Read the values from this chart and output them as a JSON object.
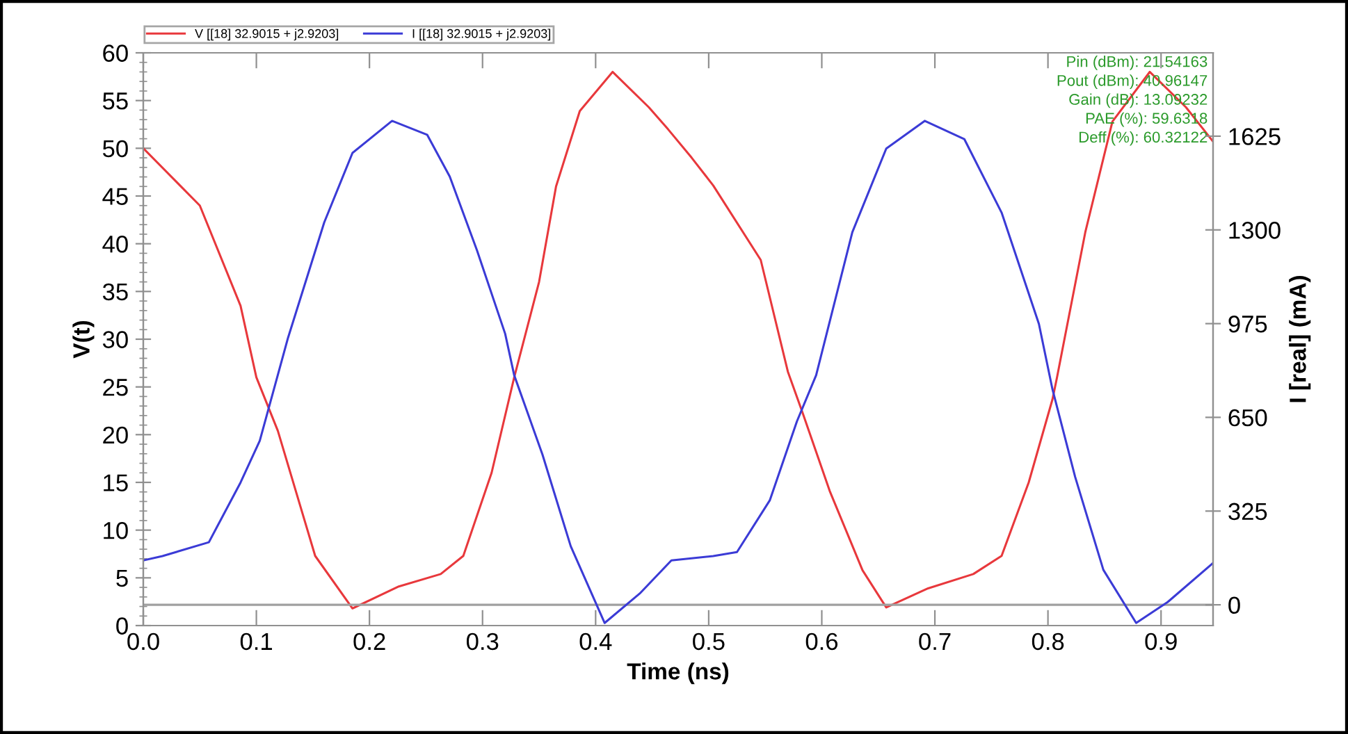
{
  "chart_data": {
    "type": "line",
    "xlabel": "Time (ns)",
    "ylabel": "V(t)",
    "y2label": "I [real] (mA)",
    "xlim": [
      0,
      0.946
    ],
    "xticks": [
      {
        "value": 0,
        "label": "0.0"
      },
      0.1,
      0.2,
      0.3,
      0.4,
      0.5,
      0.6,
      0.7,
      0.8,
      0.9
    ],
    "ylim": [
      0,
      60
    ],
    "yticks": [
      0,
      5,
      10,
      15,
      20,
      25,
      30,
      35,
      40,
      45,
      50,
      55,
      60
    ],
    "y2lim": [
      -72,
      1914
    ],
    "y2ticks": [
      0,
      325,
      650,
      975,
      1300,
      1625
    ],
    "grid": false,
    "legend": "top left",
    "marker": "none",
    "line_style": "solid",
    "ref_lines": [
      {
        "axis": "y2",
        "value": 0,
        "color": "#a0a0a0"
      }
    ],
    "annotations": [
      "Pin (dBm): 21.54163",
      "Pout (dBm): 40.96147",
      "Gain (dB): 13.09232",
      "PAE (%): 59.6318",
      "Deff (%): 60.32122"
    ],
    "series": [
      {
        "name": "V [[18] 32.9015 + j2.9203]",
        "color": "#e8383c",
        "x": [
          0,
          0.05,
          0.086,
          0.1,
          0.119,
          0.152,
          0.185,
          0.226,
          0.263,
          0.283,
          0.308,
          0.328,
          0.35,
          0.365,
          0.386,
          0.415,
          0.447,
          0.464,
          0.485,
          0.504,
          0.546,
          0.57,
          0.583,
          0.607,
          0.636,
          0.657,
          0.694,
          0.734,
          0.759,
          0.783,
          0.804,
          0.808,
          0.833,
          0.857,
          0.89,
          0.922,
          0.946
        ],
        "values": [
          50,
          44,
          33.5,
          26,
          20.4,
          7.3,
          1.8,
          4.1,
          5.4,
          7.3,
          16,
          26,
          36,
          46,
          53.9,
          58,
          54.3,
          52,
          49,
          46.1,
          38.3,
          26.6,
          22.3,
          14.1,
          5.8,
          1.9,
          3.9,
          5.4,
          7.3,
          15,
          23.7,
          26,
          41.2,
          52.8,
          58,
          54.3,
          50.7
        ]
      },
      {
        "name": "I [[18] 32.9015 + j2.9203]",
        "color": "#3b3bd6",
        "axis": "y2",
        "x": [
          0,
          0.017,
          0.058,
          0.086,
          0.103,
          0.128,
          0.16,
          0.185,
          0.22,
          0.251,
          0.271,
          0.295,
          0.32,
          0.328,
          0.353,
          0.378,
          0.408,
          0.439,
          0.467,
          0.504,
          0.525,
          0.554,
          0.578,
          0.595,
          0.627,
          0.657,
          0.691,
          0.726,
          0.759,
          0.792,
          0.804,
          0.824,
          0.849,
          0.878,
          0.906,
          0.946
        ],
        "values": [
          154,
          169,
          217,
          424,
          569,
          926,
          1326,
          1567,
          1678,
          1630,
          1485,
          1230,
          940,
          796,
          521,
          203,
          -63,
          39,
          154,
          169,
          183,
          362,
          636,
          796,
          1292,
          1582,
          1678,
          1615,
          1360,
          974,
          747,
          444,
          121,
          -63,
          10,
          145
        ]
      }
    ]
  }
}
